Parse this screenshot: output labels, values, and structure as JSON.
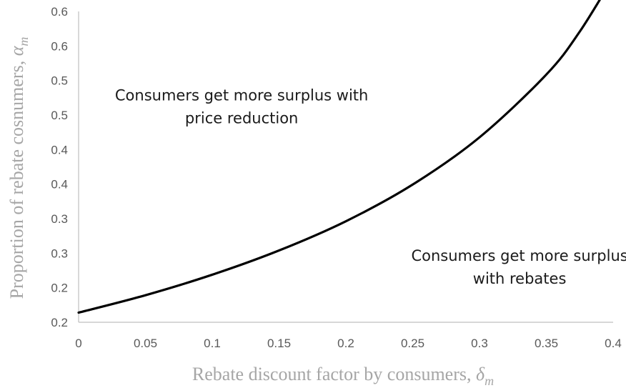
{
  "chart_data": {
    "type": "line",
    "title": "",
    "xlabel": "Rebate discount factor by consumers, ",
    "xlabel_symbol": "δ",
    "xlabel_subscript": "m",
    "ylabel": "Proportion of rebate cosnumers, ",
    "ylabel_symbol": "α",
    "ylabel_subscript": "m",
    "xlim": [
      0,
      0.4
    ],
    "ylim": [
      0.1,
      0.6
    ],
    "x_ticks": [
      0,
      0.05,
      0.1,
      0.15,
      0.2,
      0.25,
      0.3,
      0.35,
      0.4
    ],
    "x_tick_labels": [
      "0",
      "0.05",
      "0.1",
      "0.15",
      "0.2",
      "0.25",
      "0.3",
      "0.35",
      "0.4"
    ],
    "y_tick_labels": [
      "0.2",
      "0.2",
      "0.3",
      "0.3",
      "0.4",
      "0.4",
      "0.5",
      "0.5",
      "0.6",
      "0.6"
    ],
    "grid": false,
    "legend": "none",
    "line_color": "#000000",
    "series": [
      {
        "x": [
          0,
          0.05,
          0.1,
          0.15,
          0.2,
          0.25,
          0.3,
          0.35,
          0.375,
          0.4
        ],
        "y": [
          0.1155,
          0.1435,
          0.1765,
          0.2155,
          0.2625,
          0.3215,
          0.3975,
          0.4985,
          0.5675,
          0.6545
        ]
      }
    ],
    "annotations": [
      {
        "lines": [
          "Consumers get more surplus with",
          "price reduction"
        ],
        "x": 0.122,
        "y": 0.457
      },
      {
        "lines": [
          "Consumers get more surplus",
          "with rebates"
        ],
        "x": 0.33,
        "y": 0.199
      }
    ]
  }
}
